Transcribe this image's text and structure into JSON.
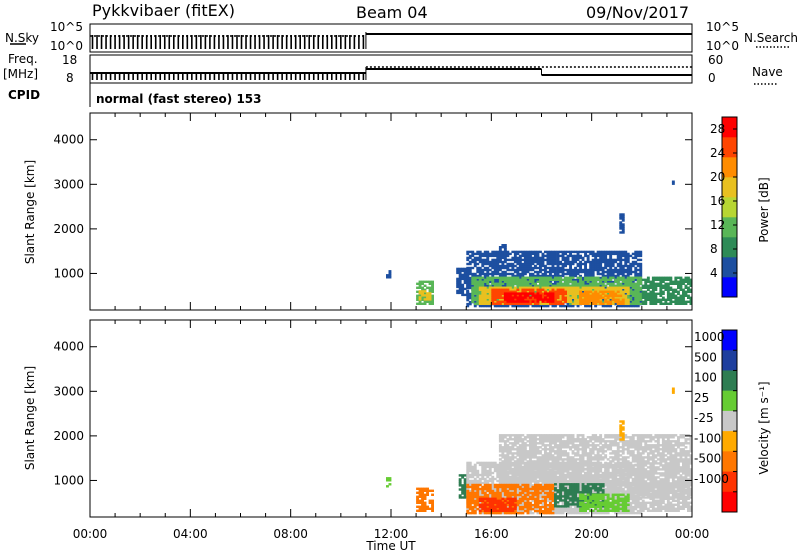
{
  "header": {
    "site": "Pykkvibaer (fitEX)",
    "beam": "Beam 04",
    "date": "09/Nov/2017"
  },
  "status_panels": {
    "nsky_label": "N.Sky",
    "nsearch_label": "N.Search",
    "nsky_ticks": [
      "10^5",
      "10^0"
    ],
    "freq_label": "Freq.",
    "freq_unit": "[MHz]",
    "freq_ticks": [
      "18",
      "8"
    ],
    "nave_label": "Nave",
    "nave_ticks": [
      "60",
      "0"
    ],
    "cpid_label": "CPID",
    "cpid_value": "normal (fast stereo) 153"
  },
  "colors": {
    "power_scale": [
      "#0000ff",
      "#1d4fa0",
      "#2e8b57",
      "#59b657",
      "#b7d633",
      "#e8c020",
      "#ff8c00",
      "#ff4500",
      "#ff0000"
    ],
    "velocity_scale": [
      "#0000ff",
      "#1e3f9e",
      "#2e7d52",
      "#66cc33",
      "#c8c8c8",
      "#ffaa00",
      "#ff7700",
      "#ff3300",
      "#ff0000"
    ]
  },
  "chart_data": [
    {
      "type": "heatmap",
      "name": "power",
      "ylabel": "Slant Range [km]",
      "yticks": [
        "1000",
        "2000",
        "3000",
        "4000"
      ],
      "ylim": [
        180,
        4600
      ],
      "xlim": [
        "00:00",
        "24:00"
      ],
      "colorbar_label": "Power [dB]",
      "colorbar_ticks": [
        "4",
        "8",
        "12",
        "16",
        "20",
        "24",
        "28"
      ],
      "colorbar_range": [
        0,
        30
      ],
      "blobs": [
        {
          "t0": 11.8,
          "t1": 11.95,
          "r0": 850,
          "r1": 1050,
          "v": 6
        },
        {
          "t0": 13.0,
          "t1": 13.6,
          "r0": 300,
          "r1": 800,
          "v": 10
        },
        {
          "t0": 13.1,
          "t1": 13.5,
          "r0": 400,
          "r1": 600,
          "v": 18
        },
        {
          "t0": 14.6,
          "t1": 15.0,
          "r0": 500,
          "r1": 1100,
          "v": 6
        },
        {
          "t0": 15.0,
          "t1": 22.0,
          "r0": 250,
          "r1": 1500,
          "v": 5
        },
        {
          "t0": 15.2,
          "t1": 22.0,
          "r0": 300,
          "r1": 900,
          "v": 12
        },
        {
          "t0": 15.5,
          "t1": 21.5,
          "r0": 300,
          "r1": 700,
          "v": 18
        },
        {
          "t0": 16.0,
          "t1": 19.0,
          "r0": 300,
          "r1": 650,
          "v": 24
        },
        {
          "t0": 16.5,
          "t1": 18.5,
          "r0": 350,
          "r1": 550,
          "v": 28
        },
        {
          "t0": 19.5,
          "t1": 21.3,
          "r0": 300,
          "r1": 600,
          "v": 22
        },
        {
          "t0": 22.0,
          "t1": 24.0,
          "r0": 300,
          "r1": 900,
          "v": 8
        },
        {
          "t0": 16.3,
          "t1": 16.6,
          "r0": 1300,
          "r1": 1650,
          "v": 5
        },
        {
          "t0": 21.1,
          "t1": 21.3,
          "r0": 1900,
          "r1": 2350,
          "v": 6
        },
        {
          "t0": 23.2,
          "t1": 23.3,
          "r0": 2950,
          "r1": 3050,
          "v": 5
        }
      ]
    },
    {
      "type": "heatmap",
      "name": "velocity",
      "ylabel": "Slant Range [km]",
      "yticks": [
        "1000",
        "2000",
        "3000",
        "4000"
      ],
      "ylim": [
        180,
        4600
      ],
      "xlim": [
        "00:00",
        "24:00"
      ],
      "xlabel": "Time UT",
      "xticks": [
        "00:00",
        "04:00",
        "08:00",
        "12:00",
        "16:00",
        "20:00",
        "00:00"
      ],
      "colorbar_label": "Velocity [m s⁻¹]",
      "colorbar_ticks": [
        "1000",
        "500",
        "100",
        "25",
        "-25",
        "-100",
        "-500",
        "-1000"
      ],
      "blobs": [
        {
          "t0": 11.8,
          "t1": 11.95,
          "r0": 850,
          "r1": 1050,
          "v": 3
        },
        {
          "t0": 13.0,
          "t1": 13.6,
          "r0": 300,
          "r1": 800,
          "v": 6
        },
        {
          "t0": 14.7,
          "t1": 15.0,
          "r0": 600,
          "r1": 1100,
          "v": 2
        },
        {
          "t0": 15.0,
          "t1": 22.0,
          "r0": 250,
          "r1": 1400,
          "v": 4
        },
        {
          "t0": 16.3,
          "t1": 24.0,
          "r0": 600,
          "r1": 2000,
          "v": 4
        },
        {
          "t0": 15.0,
          "t1": 18.5,
          "r0": 250,
          "r1": 900,
          "v": 6
        },
        {
          "t0": 15.5,
          "t1": 17.0,
          "r0": 300,
          "r1": 600,
          "v": 7
        },
        {
          "t0": 18.5,
          "t1": 20.5,
          "r0": 400,
          "r1": 900,
          "v": 2
        },
        {
          "t0": 19.5,
          "t1": 21.5,
          "r0": 300,
          "r1": 700,
          "v": 3
        },
        {
          "t0": 22.0,
          "t1": 24.0,
          "r0": 300,
          "r1": 900,
          "v": 4
        },
        {
          "t0": 21.1,
          "t1": 21.3,
          "r0": 1900,
          "r1": 2350,
          "v": 5
        },
        {
          "t0": 23.2,
          "t1": 23.3,
          "r0": 2950,
          "r1": 3050,
          "v": 5
        }
      ]
    }
  ]
}
